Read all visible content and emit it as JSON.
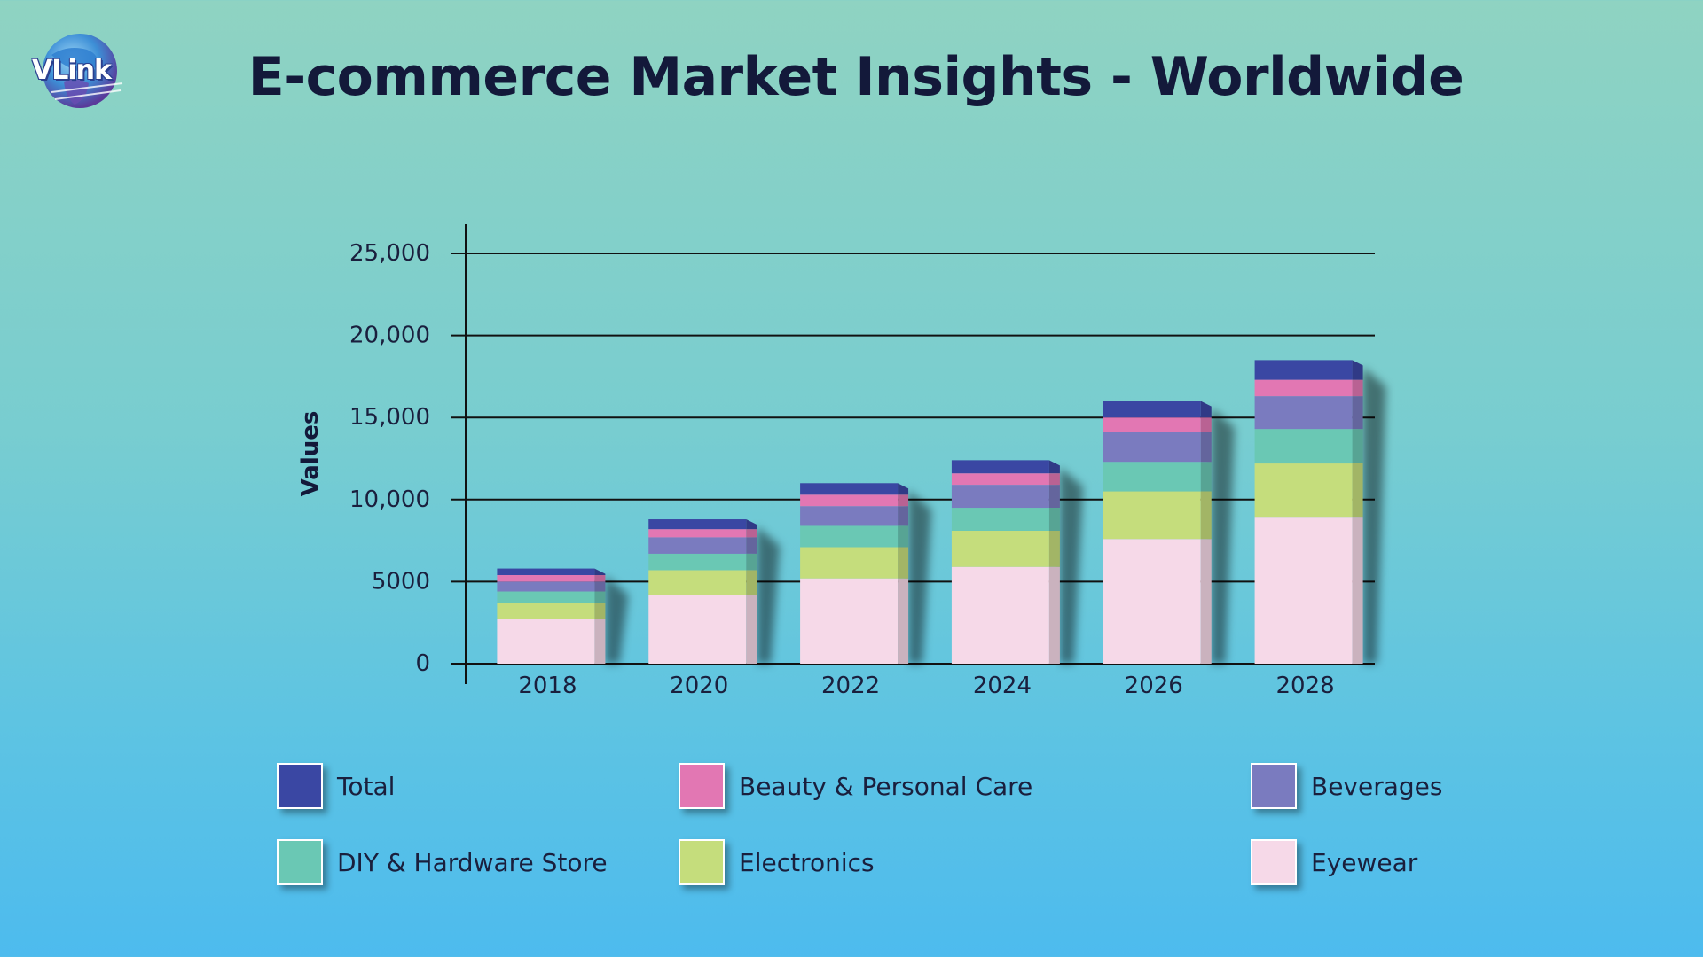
{
  "logo": {
    "text": "VLink"
  },
  "chart_data": {
    "type": "bar",
    "stacked": true,
    "title": "E-commerce Market Insights - Worldwide",
    "ylabel": "Values",
    "xlabel": "",
    "ylim": [
      0,
      25000
    ],
    "yticks": [
      0,
      5000,
      10000,
      15000,
      20000,
      25000
    ],
    "ytick_labels": [
      "0",
      "5000",
      "10,000",
      "15,000",
      "20,000",
      "25,000"
    ],
    "grid": true,
    "legend_position": "bottom",
    "categories": [
      "2018",
      "2020",
      "2022",
      "2024",
      "2026",
      "2028"
    ],
    "series": [
      {
        "name": "Eyewear",
        "color": "#f6d9e8",
        "values": [
          2700,
          4200,
          5200,
          5900,
          7600,
          8900
        ]
      },
      {
        "name": "Electronics",
        "color": "#c5dd7c",
        "values": [
          1000,
          1500,
          1900,
          2200,
          2900,
          3300
        ]
      },
      {
        "name": "DIY & Hardware Store",
        "color": "#6ac8b4",
        "values": [
          700,
          1000,
          1300,
          1400,
          1800,
          2100
        ]
      },
      {
        "name": "Beverages",
        "color": "#7a7bbf",
        "values": [
          600,
          1000,
          1200,
          1400,
          1800,
          2000
        ]
      },
      {
        "name": "Beauty & Personal Care",
        "color": "#e277b3",
        "values": [
          400,
          500,
          700,
          700,
          900,
          1000
        ]
      },
      {
        "name": "Total",
        "color": "#3a47a3",
        "values": [
          400,
          600,
          700,
          800,
          1000,
          1200
        ]
      }
    ],
    "legend_order": [
      "Total",
      "Beauty & Personal Care",
      "Beverages",
      "DIY & Hardware Store",
      "Electronics",
      "Eyewear"
    ]
  }
}
